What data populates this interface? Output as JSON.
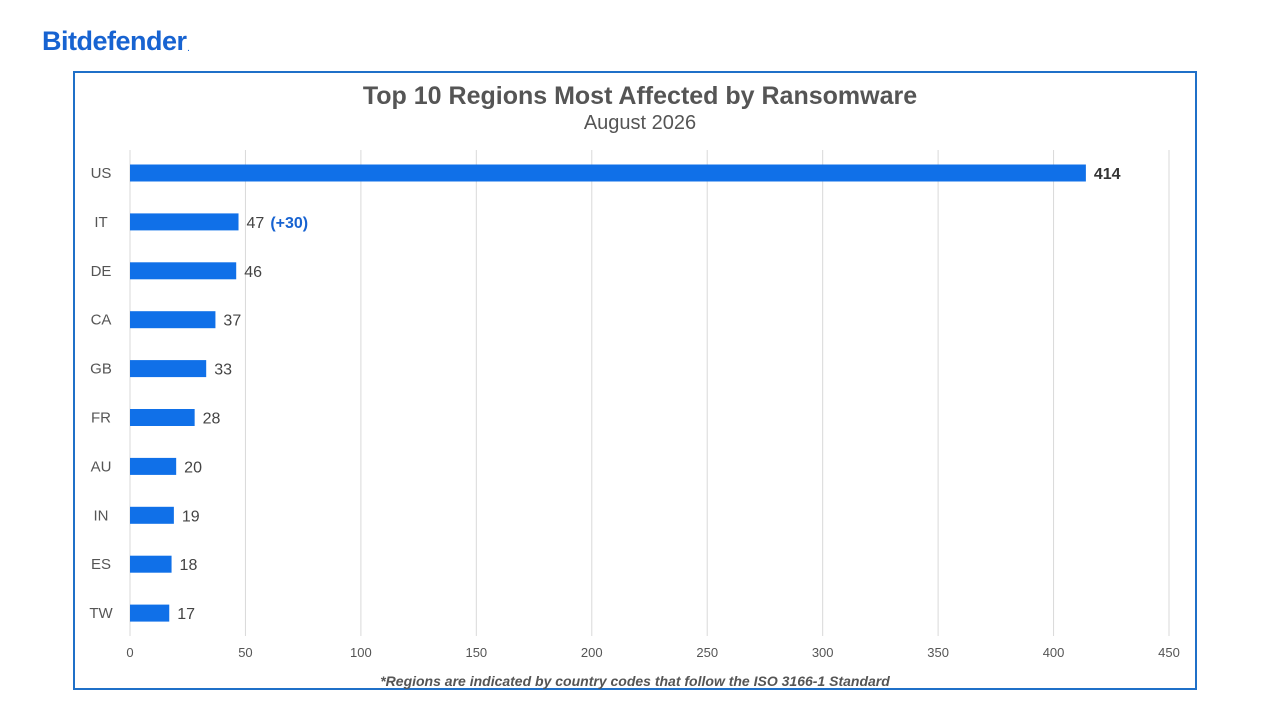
{
  "brand": {
    "name": "Bitdefender",
    "mark": "."
  },
  "footnote": "*Regions are indicated by country codes that follow the ISO 3166-1 Standard",
  "colors": {
    "bar": "#1070e8",
    "frame": "#1f70c8",
    "grid": "#d9d9d9",
    "highlight": "#1763d1",
    "text": "#555555"
  },
  "chart_data": {
    "type": "bar",
    "orientation": "horizontal",
    "title": "Top 10 Regions Most Affected by Ransomware",
    "subtitle": "August 2026",
    "categories": [
      "US",
      "IT",
      "DE",
      "CA",
      "GB",
      "FR",
      "AU",
      "IN",
      "ES",
      "TW"
    ],
    "values": [
      414,
      47,
      46,
      37,
      33,
      28,
      20,
      19,
      18,
      17
    ],
    "annotations": [
      {
        "category": "IT",
        "text": "(+30)"
      }
    ],
    "xlim": [
      0,
      450
    ],
    "xticks": [
      0,
      50,
      100,
      150,
      200,
      250,
      300,
      350,
      400,
      450
    ],
    "xlabel": "",
    "ylabel": "",
    "grid": "vertical"
  }
}
